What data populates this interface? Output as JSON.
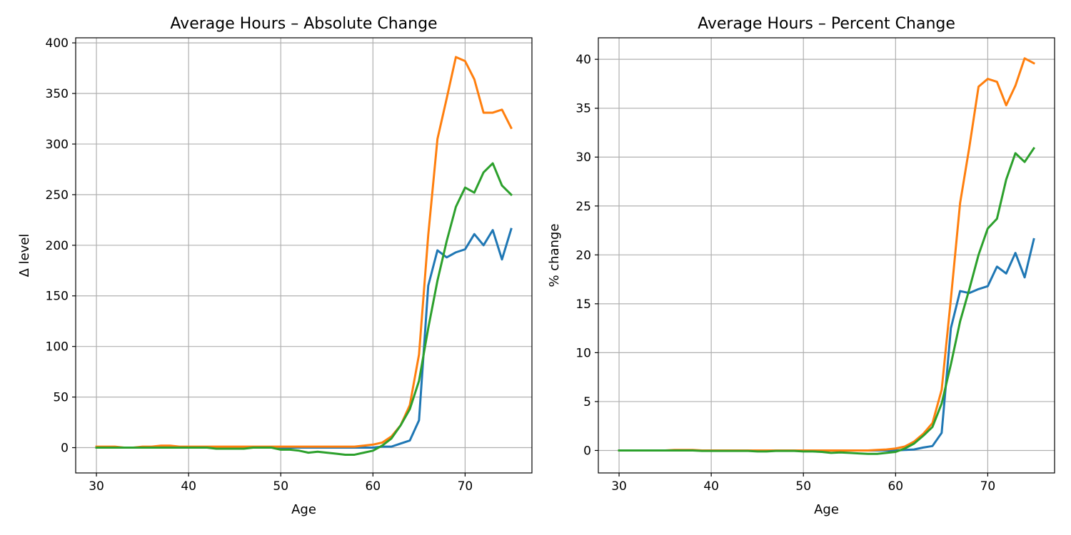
{
  "chart_data": [
    {
      "type": "line",
      "title": "Average Hours – Absolute Change",
      "xlabel": "Age",
      "ylabel": "Δ level",
      "xlim": [
        27.75,
        77.25
      ],
      "ylim": [
        -25,
        405
      ],
      "xticks": [
        30,
        40,
        50,
        60,
        70
      ],
      "yticks": [
        0,
        50,
        100,
        150,
        200,
        250,
        300,
        350,
        400
      ],
      "grid": true,
      "x": [
        30,
        31,
        32,
        33,
        34,
        35,
        36,
        37,
        38,
        39,
        40,
        41,
        42,
        43,
        44,
        45,
        46,
        47,
        48,
        49,
        50,
        51,
        52,
        53,
        54,
        55,
        56,
        57,
        58,
        59,
        60,
        61,
        62,
        63,
        64,
        65,
        66,
        67,
        68,
        69,
        70,
        71,
        72,
        73,
        74,
        75
      ],
      "series": [
        {
          "color": "#1f77b4",
          "values": [
            0,
            0,
            0,
            0,
            0,
            0,
            0,
            0,
            0,
            0,
            0,
            0,
            0,
            0,
            0,
            0,
            0,
            0,
            0,
            0,
            0,
            0,
            0,
            0,
            0,
            0,
            0,
            0,
            0,
            0,
            0,
            1,
            1,
            4,
            7,
            27,
            160,
            195,
            188,
            193,
            196,
            211,
            200,
            215,
            186,
            216
          ]
        },
        {
          "color": "#ff7f0e",
          "values": [
            1,
            1,
            1,
            0,
            0,
            1,
            1,
            2,
            2,
            1,
            1,
            1,
            1,
            1,
            1,
            1,
            1,
            1,
            1,
            1,
            1,
            1,
            1,
            1,
            1,
            1,
            1,
            1,
            1,
            2,
            3,
            5,
            11,
            22,
            42,
            92,
            210,
            305,
            345,
            386,
            382,
            364,
            331,
            331,
            334,
            316
          ]
        },
        {
          "color": "#2ca02c",
          "values": [
            0,
            0,
            0,
            0,
            0,
            0,
            0,
            0,
            0,
            0,
            0,
            0,
            0,
            -1,
            -1,
            -1,
            -1,
            0,
            0,
            0,
            -2,
            -2,
            -3,
            -5,
            -4,
            -5,
            -6,
            -7,
            -7,
            -5,
            -3,
            2,
            9,
            22,
            38,
            66,
            118,
            165,
            204,
            238,
            257,
            252,
            272,
            281,
            259,
            250
          ]
        }
      ]
    },
    {
      "type": "line",
      "title": "Average Hours – Percent Change",
      "xlabel": "Age",
      "ylabel": "% change",
      "xlim": [
        27.75,
        77.25
      ],
      "ylim": [
        -2.3,
        42.2
      ],
      "xticks": [
        30,
        40,
        50,
        60,
        70
      ],
      "yticks": [
        0,
        5,
        10,
        15,
        20,
        25,
        30,
        35,
        40
      ],
      "grid": true,
      "x": [
        30,
        31,
        32,
        33,
        34,
        35,
        36,
        37,
        38,
        39,
        40,
        41,
        42,
        43,
        44,
        45,
        46,
        47,
        48,
        49,
        50,
        51,
        52,
        53,
        54,
        55,
        56,
        57,
        58,
        59,
        60,
        61,
        62,
        63,
        64,
        65,
        66,
        67,
        68,
        69,
        70,
        71,
        72,
        73,
        74,
        75
      ],
      "series": [
        {
          "color": "#1f77b4",
          "values": [
            0,
            0,
            0,
            0,
            0,
            0,
            0,
            0,
            0,
            0,
            0,
            0,
            0,
            0,
            0,
            0,
            0,
            0,
            0,
            0,
            0,
            0,
            0,
            0,
            0,
            0,
            0,
            0,
            0,
            0,
            0,
            0.05,
            0.1,
            0.3,
            0.45,
            1.8,
            12.5,
            16.3,
            16.1,
            16.5,
            16.8,
            18.8,
            18.1,
            20.2,
            17.7,
            21.6
          ]
        },
        {
          "color": "#ff7f0e",
          "values": [
            0,
            0,
            0,
            0,
            0,
            0,
            0.05,
            0.05,
            0.05,
            0,
            0,
            0,
            0,
            0,
            0,
            0,
            0,
            0,
            0,
            0,
            0,
            0,
            0,
            0,
            0,
            0,
            0,
            0,
            0.05,
            0.1,
            0.2,
            0.4,
            0.9,
            1.7,
            2.8,
            6.2,
            15.5,
            25.3,
            31.0,
            37.2,
            38.0,
            37.7,
            35.3,
            37.3,
            40.1,
            39.6
          ]
        },
        {
          "color": "#2ca02c",
          "values": [
            0,
            0,
            0,
            0,
            0,
            0,
            0,
            0,
            0,
            -0.05,
            -0.05,
            -0.05,
            -0.05,
            -0.05,
            -0.05,
            -0.1,
            -0.1,
            -0.05,
            -0.05,
            -0.05,
            -0.1,
            -0.1,
            -0.15,
            -0.25,
            -0.2,
            -0.25,
            -0.3,
            -0.35,
            -0.35,
            -0.25,
            -0.15,
            0.2,
            0.7,
            1.5,
            2.4,
            4.8,
            8.8,
            13.2,
            16.5,
            20.0,
            22.7,
            23.7,
            27.7,
            30.4,
            29.5,
            30.9
          ]
        }
      ]
    }
  ]
}
